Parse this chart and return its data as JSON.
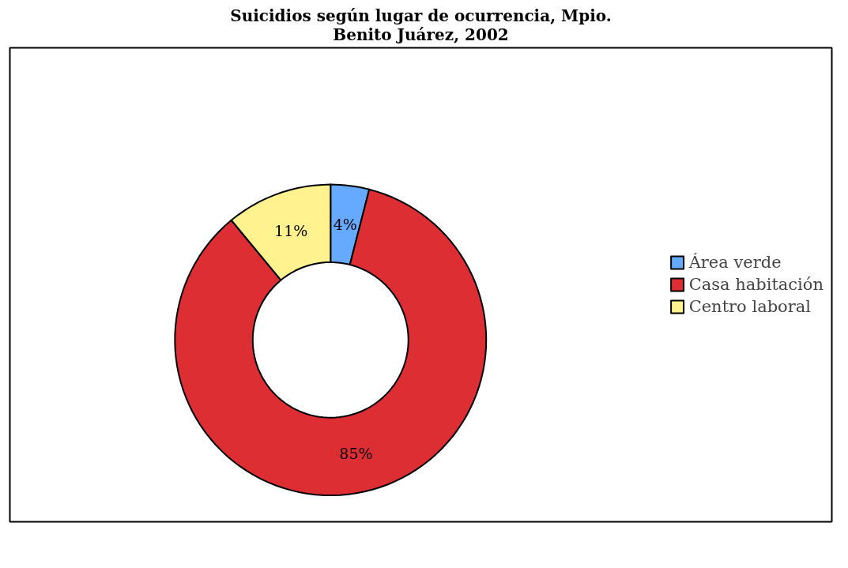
{
  "chart_data": {
    "type": "donut",
    "title": "Suicidios según lugar de ocurrencia, Mpio.\nBenito Juárez, 2002",
    "categories": [
      "Área verde",
      "Casa habitación",
      "Centro laboral"
    ],
    "values": [
      4,
      85,
      11
    ],
    "colors": [
      "#66aaff",
      "#dd2e33",
      "#fff28f"
    ],
    "value_labels": [
      "4%",
      "85%",
      "11%"
    ],
    "legend": "right"
  }
}
